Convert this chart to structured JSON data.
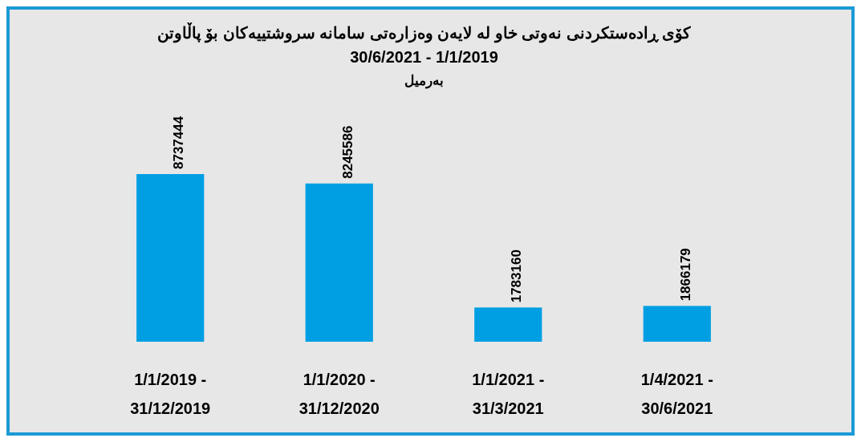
{
  "chart_data": {
    "type": "bar",
    "title": "کۆی ڕادەستکردنی نەوتی خاو لە لایەن وەزارەتی سامانە سروشتییەکان بۆ پاڵاوتن",
    "subtitle": "30/6/2021 - 1/1/2019",
    "annotations": [
      "بەرمیل"
    ],
    "categories": [
      "1/1/2019 - 31/12/2019",
      "1/1/2020 - 31/12/2020",
      "1/1/2021 - 31/3/2021",
      "1/4/2021 - 30/6/2021"
    ],
    "values": [
      8737444,
      8245586,
      1783160,
      1866179
    ],
    "color": "#009fe3",
    "data_labels": true
  }
}
